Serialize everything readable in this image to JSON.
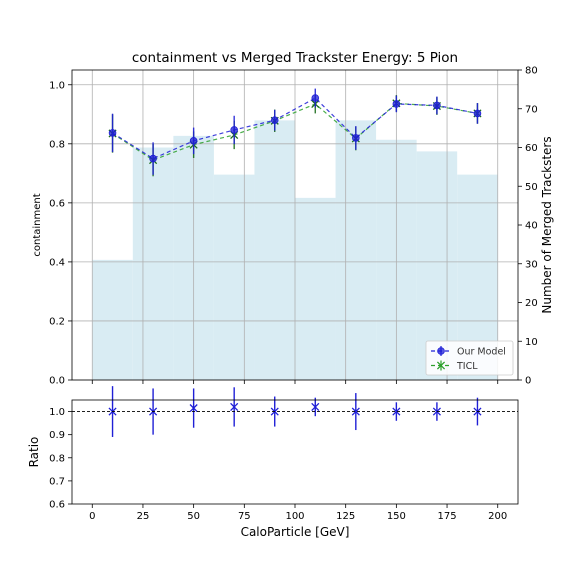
{
  "chart_data": [
    {
      "type": "line",
      "title": "containment vs Merged Trackster Energy: 5 Pion",
      "xlabel": "",
      "ylabel": "containment",
      "y2label": "Number of Merged Tracksters",
      "xlim": [
        -10,
        210
      ],
      "ylim": [
        0,
        1.05
      ],
      "y2lim": [
        0,
        80
      ],
      "yticks": [
        "0.0",
        "0.2",
        "0.4",
        "0.6",
        "0.8",
        "1.0"
      ],
      "y2ticks": [
        "0",
        "10",
        "20",
        "30",
        "40",
        "50",
        "60",
        "70",
        "80"
      ],
      "grid": true,
      "legend_position": "lower-right",
      "histogram": {
        "bin_edges": [
          0,
          20,
          40,
          60,
          80,
          100,
          120,
          140,
          160,
          180,
          200
        ],
        "counts": [
          31,
          60,
          63,
          53,
          67,
          47,
          67,
          62,
          59,
          53
        ],
        "color": "#d9ecf3"
      },
      "x": [
        10,
        30,
        50,
        70,
        90,
        110,
        130,
        150,
        170,
        190
      ],
      "series": [
        {
          "name": "Our Model",
          "color": "#1f1fd6",
          "values": [
            0.837,
            0.75,
            0.81,
            0.847,
            0.88,
            0.955,
            0.82,
            0.935,
            0.93,
            0.903
          ],
          "errors": [
            0.065,
            0.055,
            0.045,
            0.048,
            0.035,
            0.032,
            0.04,
            0.028,
            0.03,
            0.035
          ]
        },
        {
          "name": "TICL",
          "color": "#2ca02c",
          "values": [
            0.835,
            0.745,
            0.797,
            0.83,
            0.878,
            0.935,
            0.818,
            0.937,
            0.928,
            0.903
          ],
          "errors": [
            0.065,
            0.055,
            0.045,
            0.048,
            0.038,
            0.032,
            0.04,
            0.028,
            0.03,
            0.035
          ]
        }
      ]
    },
    {
      "type": "scatter",
      "title": "",
      "xlabel": "CaloParticle [GeV]",
      "ylabel": "Ratio",
      "xlim": [
        -10,
        210
      ],
      "ylim": [
        0.6,
        1.05
      ],
      "xticks": [
        "0",
        "25",
        "50",
        "75",
        "100",
        "125",
        "150",
        "175",
        "200"
      ],
      "yticks": [
        "0.6",
        "0.7",
        "0.8",
        "0.9",
        "1.0"
      ],
      "reference_line": 1.0,
      "color": "#1f1fd6",
      "x": [
        10,
        30,
        50,
        70,
        90,
        110,
        130,
        150,
        170,
        190
      ],
      "values": [
        1.0,
        1.0,
        1.015,
        1.02,
        1.0,
        1.02,
        1.0,
        1.0,
        1.0,
        1.0
      ],
      "errors": [
        0.11,
        0.1,
        0.085,
        0.085,
        0.065,
        0.04,
        0.08,
        0.04,
        0.04,
        0.06
      ]
    }
  ]
}
